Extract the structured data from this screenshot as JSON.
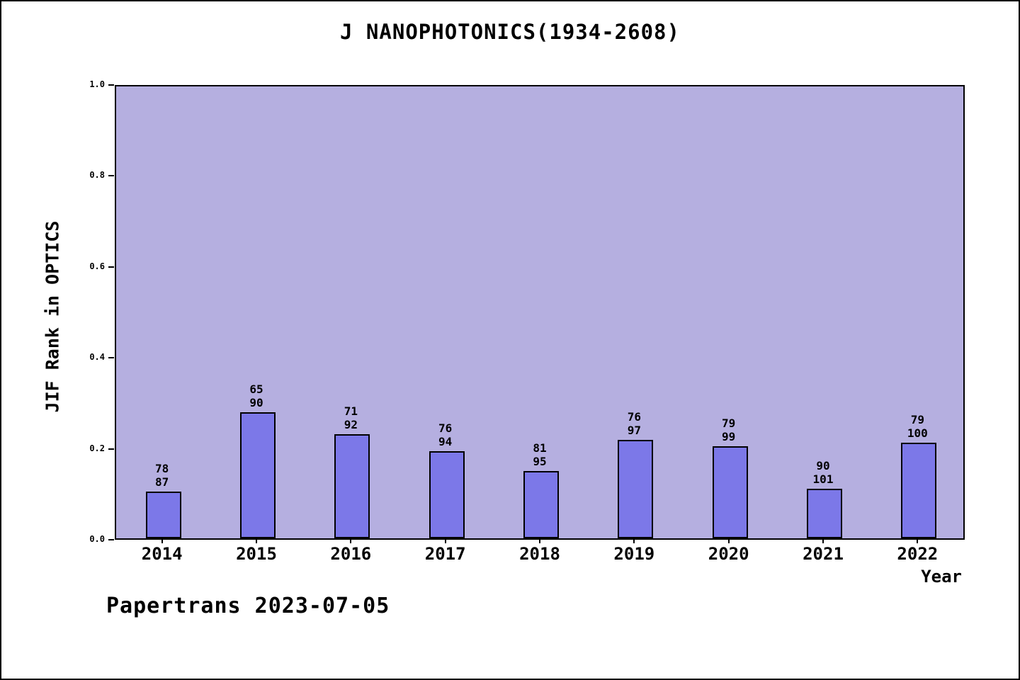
{
  "footer": "Papertrans 2023-07-05",
  "chart_data": {
    "type": "bar",
    "title": "J NANOPHOTONICS(1934-2608)",
    "xlabel": "Year",
    "ylabel": "JIF Rank in OPTICS",
    "ylim": [
      0,
      1
    ],
    "yticks": [
      0.0,
      0.2,
      0.4,
      0.6,
      0.8,
      1.0
    ],
    "grid": false,
    "legend": "none",
    "categories": [
      "2014",
      "2015",
      "2016",
      "2017",
      "2018",
      "2019",
      "2020",
      "2021",
      "2022"
    ],
    "bar_labels": [
      [
        "78",
        "87"
      ],
      [
        "65",
        "90"
      ],
      [
        "71",
        "92"
      ],
      [
        "76",
        "94"
      ],
      [
        "81",
        "95"
      ],
      [
        "76",
        "97"
      ],
      [
        "79",
        "99"
      ],
      [
        "90",
        "101"
      ],
      [
        "79",
        "100"
      ]
    ],
    "values": [
      0.1034,
      0.2778,
      0.2283,
      0.1915,
      0.1474,
      0.2165,
      0.202,
      0.1089,
      0.21
    ],
    "colors": {
      "plot_background": "#b5afe0",
      "bar_fill": "#7c78e8",
      "bar_border": "#000000",
      "axis": "#000000"
    }
  }
}
